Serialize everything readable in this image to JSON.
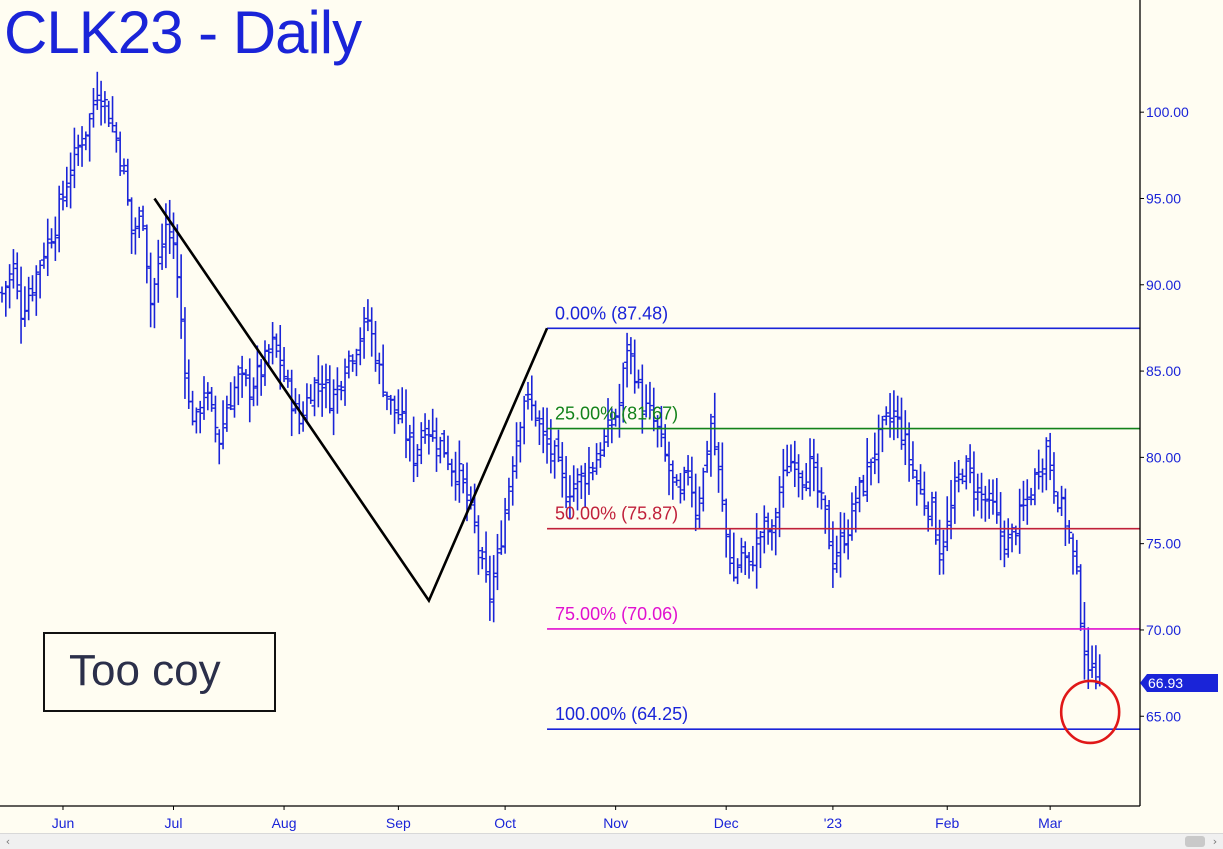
{
  "title": "CLK23 - Daily",
  "note": "Too coy",
  "chart_data": {
    "type": "ohlc",
    "title": "CLK23 - Daily",
    "ylim": [
      59.8,
      106.5
    ],
    "y_ticks": [
      "100.00",
      "95.00",
      "90.00",
      "85.00",
      "80.00",
      "75.00",
      "70.00",
      "65.00"
    ],
    "x_ticks": [
      {
        "label": "Jun",
        "day": 16
      },
      {
        "label": "Jul",
        "day": 45
      },
      {
        "label": "Aug",
        "day": 74
      },
      {
        "label": "Sep",
        "day": 104
      },
      {
        "label": "Oct",
        "day": 132
      },
      {
        "label": "Nov",
        "day": 161
      },
      {
        "label": "Dec",
        "day": 190
      },
      {
        "label": "'23",
        "day": 218
      },
      {
        "label": "Feb",
        "day": 248
      },
      {
        "label": "Mar",
        "day": 275
      }
    ],
    "last_price": "66.93",
    "last_price_value": 66.93,
    "series": [
      {
        "anchors": [
          [
            0,
            89.5
          ],
          [
            3,
            91.0
          ],
          [
            5,
            88.5
          ],
          [
            8,
            90.0
          ],
          [
            11,
            92.0
          ],
          [
            14,
            93.5
          ],
          [
            17,
            96.0
          ],
          [
            20,
            98.0
          ],
          [
            23,
            99.5
          ],
          [
            25,
            101.5
          ],
          [
            27,
            100.5
          ],
          [
            30,
            98.5
          ],
          [
            32,
            96.5
          ],
          [
            34,
            93.0
          ],
          [
            37,
            94.0
          ],
          [
            39,
            89.0
          ],
          [
            41,
            91.0
          ],
          [
            43,
            93.5
          ],
          [
            45,
            92.5
          ],
          [
            47,
            88.0
          ],
          [
            49,
            83.0
          ],
          [
            51,
            82.0
          ],
          [
            53,
            84.0
          ],
          [
            55,
            82.5
          ],
          [
            57,
            81.0
          ],
          [
            59,
            83.0
          ],
          [
            62,
            84.5
          ],
          [
            65,
            84.0
          ],
          [
            68,
            85.0
          ],
          [
            71,
            86.5
          ],
          [
            73,
            85.5
          ],
          [
            75,
            84.0
          ],
          [
            78,
            82.0
          ],
          [
            81,
            84.0
          ],
          [
            84,
            84.5
          ],
          [
            86,
            83.5
          ],
          [
            88,
            84.0
          ],
          [
            90,
            85.5
          ],
          [
            93,
            86.5
          ],
          [
            96,
            88.0
          ],
          [
            99,
            85.0
          ],
          [
            102,
            83.0
          ],
          [
            105,
            82.0
          ],
          [
            108,
            80.0
          ],
          [
            111,
            82.0
          ],
          [
            114,
            81.0
          ],
          [
            116,
            80.5
          ],
          [
            118,
            79.5
          ],
          [
            120,
            79.0
          ],
          [
            122,
            77.5
          ],
          [
            124,
            76.0
          ],
          [
            126,
            73.5
          ],
          [
            128,
            72.0
          ],
          [
            130,
            74.0
          ],
          [
            132,
            77.0
          ],
          [
            134,
            80.0
          ],
          [
            137,
            83.5
          ],
          [
            140,
            82.5
          ],
          [
            142,
            81.0
          ],
          [
            145,
            80.0
          ],
          [
            148,
            78.0
          ],
          [
            150,
            78.5
          ],
          [
            153,
            79.0
          ],
          [
            156,
            80.0
          ],
          [
            159,
            81.5
          ],
          [
            162,
            83.0
          ],
          [
            164,
            86.5
          ],
          [
            166,
            85.0
          ],
          [
            168,
            83.0
          ],
          [
            170,
            82.5
          ],
          [
            172,
            81.5
          ],
          [
            174,
            80.0
          ],
          [
            176,
            78.5
          ],
          [
            178,
            77.5
          ],
          [
            180,
            79.5
          ],
          [
            182,
            77.0
          ],
          [
            184,
            79.0
          ],
          [
            186,
            82.0
          ],
          [
            188,
            79.0
          ],
          [
            190,
            75.5
          ],
          [
            192,
            73.0
          ],
          [
            194,
            74.5
          ],
          [
            196,
            73.5
          ],
          [
            198,
            75.0
          ],
          [
            200,
            76.0
          ],
          [
            202,
            75.5
          ],
          [
            204,
            78.0
          ],
          [
            206,
            79.5
          ],
          [
            208,
            80.0
          ],
          [
            210,
            79.0
          ],
          [
            212,
            79.5
          ],
          [
            214,
            78.0
          ],
          [
            216,
            76.5
          ],
          [
            218,
            74.0
          ],
          [
            220,
            75.0
          ],
          [
            222,
            76.0
          ],
          [
            224,
            77.5
          ],
          [
            226,
            78.5
          ],
          [
            228,
            80.0
          ],
          [
            230,
            81.0
          ],
          [
            232,
            82.0
          ],
          [
            234,
            82.5
          ],
          [
            236,
            81.5
          ],
          [
            238,
            80.0
          ],
          [
            240,
            78.5
          ],
          [
            242,
            77.5
          ],
          [
            244,
            77.0
          ],
          [
            246,
            74.5
          ],
          [
            248,
            76.0
          ],
          [
            250,
            78.0
          ],
          [
            252,
            79.5
          ],
          [
            254,
            79.0
          ],
          [
            256,
            78.0
          ],
          [
            258,
            77.5
          ],
          [
            260,
            77.0
          ],
          [
            262,
            75.5
          ],
          [
            264,
            75.0
          ],
          [
            266,
            76.0
          ],
          [
            268,
            77.0
          ],
          [
            270,
            78.0
          ],
          [
            272,
            79.5
          ],
          [
            274,
            80.5
          ],
          [
            276,
            78.5
          ],
          [
            278,
            77.0
          ],
          [
            280,
            75.5
          ],
          [
            282,
            73.0
          ],
          [
            283,
            71.0
          ],
          [
            284,
            69.0
          ],
          [
            285,
            67.0
          ],
          [
            286,
            68.5
          ],
          [
            287,
            67.5
          ],
          [
            288,
            66.93
          ]
        ]
      }
    ],
    "pattern_line": [
      [
        40,
        95.0
      ],
      [
        112,
        71.7
      ],
      [
        143,
        87.48
      ]
    ],
    "fib_levels": [
      {
        "label": "0.00% (87.48)",
        "value": 87.48,
        "color": "#1a24d8"
      },
      {
        "label": "25.00% (81.67)",
        "value": 81.67,
        "color": "#12821a"
      },
      {
        "label": "50.00% (75.87)",
        "value": 75.87,
        "color": "#c0203a"
      },
      {
        "label": "75.00% (70.06)",
        "value": 70.06,
        "color": "#e010d0"
      },
      {
        "label": "100.00% (64.25)",
        "value": 64.25,
        "color": "#1a24d8"
      }
    ],
    "fib_start_day": 143,
    "highlight": {
      "day": 285.5,
      "value": 65.25
    },
    "colors": {
      "bars": "#1a24d8",
      "background": "#fffdf2",
      "axis": "#000000",
      "highlight": "#e01818",
      "pattern": "#000000"
    }
  }
}
